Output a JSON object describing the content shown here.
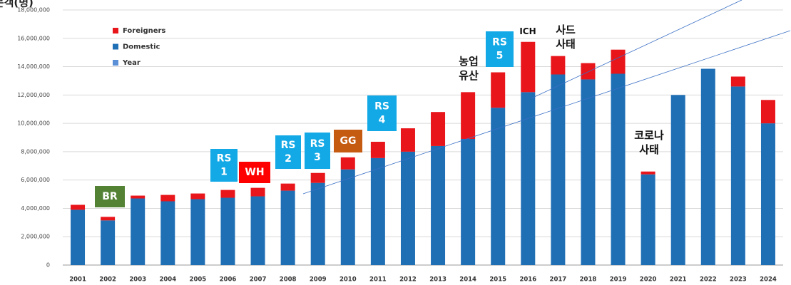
{
  "chart_data": {
    "type": "stacked_bar",
    "title": "방문객(명)",
    "categories": [
      "2001",
      "2002",
      "2003",
      "2004",
      "2005",
      "2006",
      "2007",
      "2008",
      "2009",
      "2010",
      "2011",
      "2012",
      "2013",
      "2014",
      "2015",
      "2016",
      "2017",
      "2018",
      "2019",
      "2020",
      "2021",
      "2022",
      "2023",
      "2024"
    ],
    "series": [
      {
        "name": "Domestic",
        "color": "#1f6fb5",
        "values": [
          3900000,
          3150000,
          4700000,
          4500000,
          4650000,
          4750000,
          4850000,
          5250000,
          5800000,
          6750000,
          7550000,
          8000000,
          8400000,
          8900000,
          11100000,
          12200000,
          13450000,
          13100000,
          13500000,
          6400000,
          12000000,
          13850000,
          12600000,
          10000000
        ]
      },
      {
        "name": "Foreigners",
        "color": "#e8151b",
        "values": [
          350000,
          250000,
          200000,
          450000,
          400000,
          550000,
          600000,
          500000,
          700000,
          850000,
          1150000,
          1650000,
          2400000,
          3300000,
          2500000,
          3550000,
          1300000,
          1150000,
          1700000,
          200000,
          0,
          0,
          700000,
          1650000
        ]
      }
    ],
    "legend_extra": {
      "name": "Year",
      "color": "#5b8fd6"
    },
    "ylim": [
      0,
      18000000
    ],
    "yticks": [
      0,
      {
        "value": 2000000,
        "label": "2,000,000"
      },
      {
        "value": 4000000,
        "label": "4,000,000"
      },
      {
        "value": 6000000,
        "label": "6,000,000"
      },
      {
        "value": 8000000,
        "label": "8,000,000"
      },
      {
        "value": 10000000,
        "label": "10,000,000"
      },
      {
        "value": 12000000,
        "label": "12,000,000"
      },
      {
        "value": 14000000,
        "label": "14,000,000"
      },
      {
        "value": 16000000,
        "label": "16,000,000"
      },
      {
        "value": 18000000,
        "label": "18,000,000"
      }
    ],
    "grid": true,
    "annotations": [
      {
        "text": "BR",
        "color": "#548235"
      },
      {
        "text": "RS 1",
        "color": "#12a9e6"
      },
      {
        "text": "WH",
        "color": "#ff0000"
      },
      {
        "text": "RS 2",
        "color": "#12a9e6"
      },
      {
        "text": "RS 3",
        "color": "#12a9e6"
      },
      {
        "text": "GG",
        "color": "#c55a11"
      },
      {
        "text": "RS 4",
        "color": "#12a9e6"
      },
      {
        "text": "농업 유산"
      },
      {
        "text": "RS 5",
        "color": "#12a9e6"
      },
      {
        "text": "ICH"
      },
      {
        "text": "사드 사태"
      },
      {
        "text": "코로나 사태"
      }
    ]
  }
}
